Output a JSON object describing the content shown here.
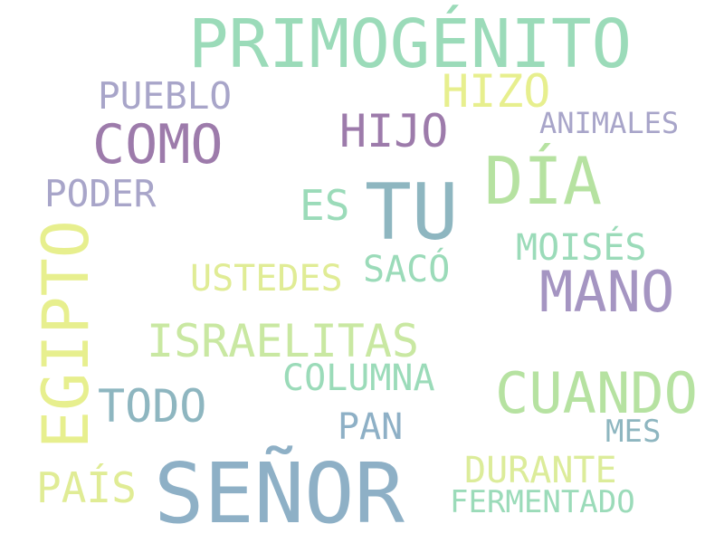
{
  "words": {
    "primogenito": {
      "text": "PRIMOGÉNITO",
      "color": "#9bdbb9"
    },
    "hizo": {
      "text": "HIZO",
      "color": "#e7ef8e"
    },
    "pueblo": {
      "text": "PUEBLO",
      "color": "#a8a5c9"
    },
    "como": {
      "text": "COMO",
      "color": "#9d7bab"
    },
    "hijo": {
      "text": "HIJO",
      "color": "#9d7bab"
    },
    "animales": {
      "text": "ANIMALES",
      "color": "#a8a5c9"
    },
    "dia": {
      "text": "DÍA",
      "color": "#b6e2a1"
    },
    "poder": {
      "text": "PODER",
      "color": "#a8a5c9"
    },
    "es": {
      "text": "ES",
      "color": "#9bdbb9"
    },
    "tu": {
      "text": "TU",
      "color": "#8eb6c0"
    },
    "moises": {
      "text": "MOISÉS",
      "color": "#9bdbb9"
    },
    "egipto": {
      "text": "EGIPTO",
      "color": "#e7ef8e"
    },
    "ustedes": {
      "text": "USTEDES",
      "color": "#e0ec95"
    },
    "saco": {
      "text": "SACÓ",
      "color": "#9bdbb9"
    },
    "mano": {
      "text": "MANO",
      "color": "#a595c2"
    },
    "israelitas": {
      "text": "ISRAELITAS",
      "color": "#c9e8a2"
    },
    "columna": {
      "text": "COLUMNA",
      "color": "#9bdbb9"
    },
    "cuando": {
      "text": "CUANDO",
      "color": "#b6e2a1"
    },
    "todo": {
      "text": "TODO",
      "color": "#8eb6c0"
    },
    "pan": {
      "text": "PAN",
      "color": "#8eb0c6"
    },
    "mes": {
      "text": "MES",
      "color": "#8eb6c0"
    },
    "durante": {
      "text": "DURANTE",
      "color": "#dcec9a"
    },
    "pais": {
      "text": "PAÍS",
      "color": "#e0ec95"
    },
    "senor": {
      "text": "SEÑOR",
      "color": "#8eb0c6"
    },
    "fermentado": {
      "text": "FERMENTADO",
      "color": "#9bdbb9"
    }
  }
}
